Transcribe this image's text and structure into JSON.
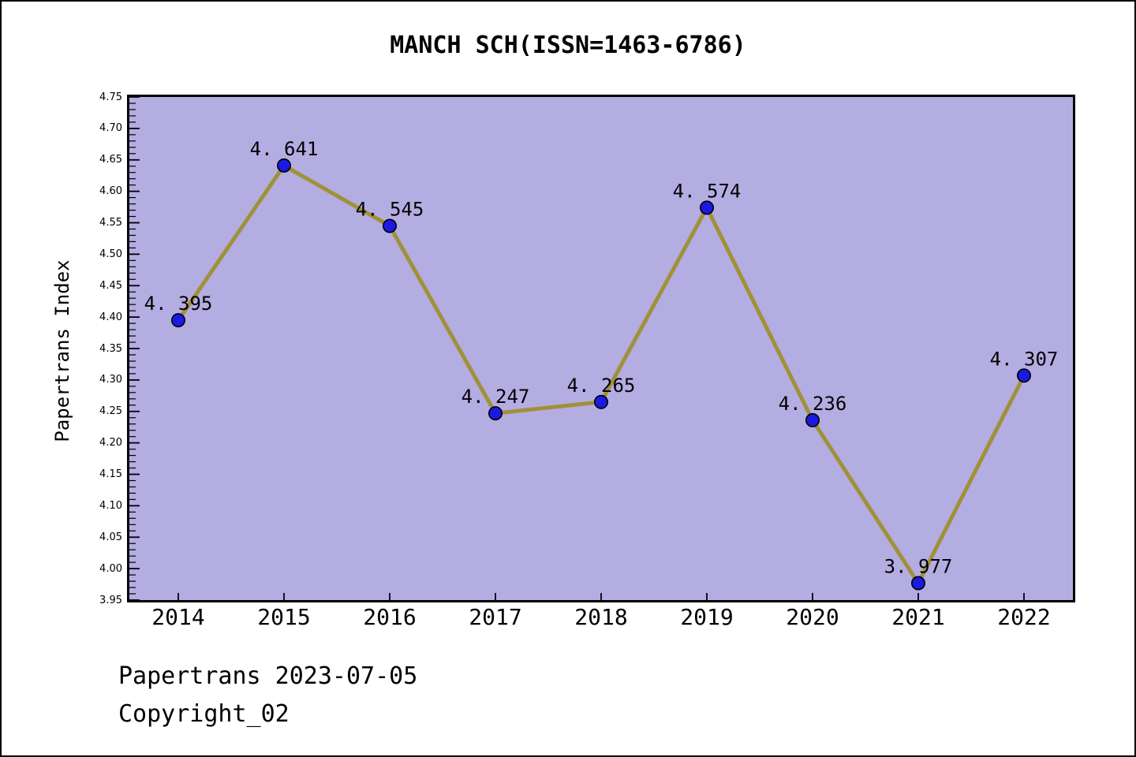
{
  "page": {
    "title": "MANCH SCH(ISSN=1463-6786)",
    "y_axis_label": "Papertrans Index",
    "footer_line1": "Papertrans 2023-07-05",
    "footer_line2": "Copyright_02"
  },
  "chart_data": {
    "type": "line",
    "title": "MANCH SCH(ISSN=1463-6786)",
    "xlabel": "",
    "ylabel": "Papertrans Index",
    "categories": [
      "2014",
      "2015",
      "2016",
      "2017",
      "2018",
      "2019",
      "2020",
      "2021",
      "2022"
    ],
    "series": [
      {
        "name": "Papertrans Index",
        "values": [
          4.395,
          4.641,
          4.545,
          4.247,
          4.265,
          4.574,
          4.236,
          3.977,
          4.307
        ]
      }
    ],
    "point_labels": [
      "4. 395",
      "4. 641",
      "4. 545",
      "4. 247",
      "4. 265",
      "4. 574",
      "4. 236",
      "3. 977",
      "4. 307"
    ],
    "ylim": [
      3.95,
      4.75
    ],
    "ytick_step": 0.05,
    "ytick_minor_step": 0.01,
    "ytick_labels": [
      "3.95",
      "4.00",
      "4.05",
      "4.10",
      "4.15",
      "4.20",
      "4.25",
      "4.30",
      "4.35",
      "4.40",
      "4.45",
      "4.50",
      "4.55",
      "4.60",
      "4.65",
      "4.70",
      "4.75"
    ],
    "grid": false,
    "legend": "none",
    "colors": {
      "plot_background": "#b4ade2",
      "line": "#9f9138",
      "marker_fill": "#1a1ae0",
      "marker_edge": "#000000",
      "text": "#000000",
      "frame": "#000000"
    }
  }
}
